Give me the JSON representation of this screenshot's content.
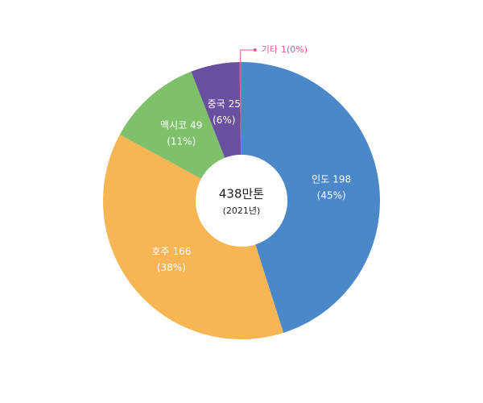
{
  "chart_data": {
    "type": "donut",
    "center_label": "438만톤",
    "center_sublabel": "(2021년)",
    "categories": [
      "인도",
      "호주",
      "멕시코",
      "중국",
      "기타"
    ],
    "values": [
      198,
      166,
      49,
      25,
      1
    ],
    "share_labels": [
      "(45%)",
      "(38%)",
      "(11%)",
      "(6%)",
      "(0%)"
    ],
    "colors": [
      "#4a88c9",
      "#f7b554",
      "#7fc06a",
      "#6a4fa0",
      "#e0559a"
    ]
  }
}
